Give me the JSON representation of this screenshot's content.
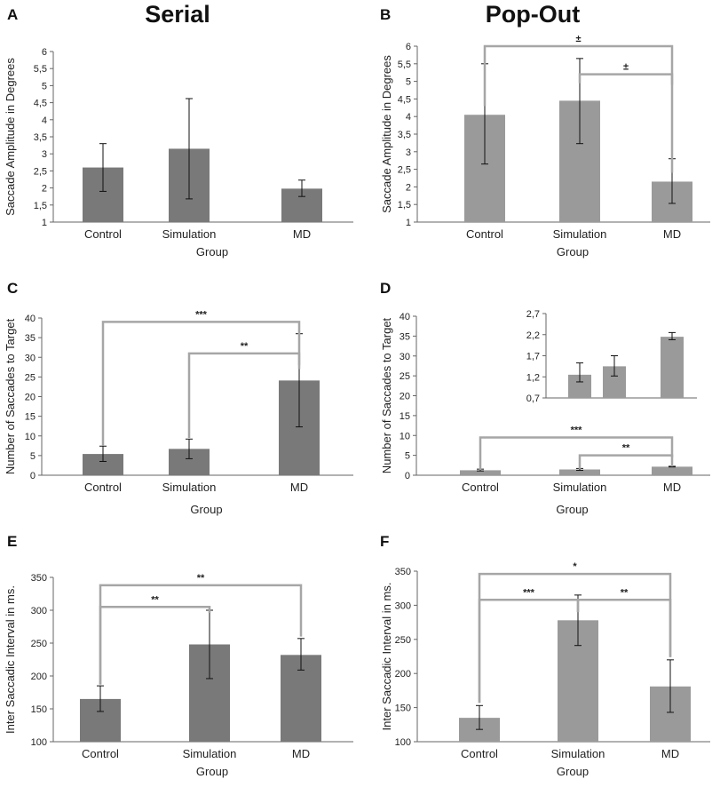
{
  "titles": {
    "left": "Serial",
    "right": "Pop-Out"
  },
  "colors": {
    "dark_bar": "#797979",
    "light_bar": "#9a9a9a",
    "bracket": "#a6a6a6"
  },
  "chart_data": [
    {
      "id": "A",
      "type": "bar",
      "column": "Serial",
      "categories": [
        "Control",
        "Simulation",
        "MD"
      ],
      "values": [
        2.6,
        3.15,
        1.98
      ],
      "err_low": [
        1.9,
        1.68,
        1.75
      ],
      "err_high": [
        3.3,
        4.62,
        2.23
      ],
      "xlabel": "Group",
      "ylabel": "Saccade Amplitude in Degrees",
      "ylim": [
        1,
        6
      ],
      "ticks": [
        "1",
        "1,5",
        "2",
        "2,5",
        "3",
        "3,5",
        "4",
        "4,5",
        "5",
        "5,5",
        "6"
      ],
      "brackets": []
    },
    {
      "id": "B",
      "type": "bar",
      "column": "Pop-Out",
      "categories": [
        "Control",
        "Simulation",
        "MD"
      ],
      "values": [
        4.05,
        4.45,
        2.15
      ],
      "err_low": [
        2.65,
        3.23,
        1.53
      ],
      "err_high": [
        5.5,
        5.65,
        2.8
      ],
      "xlabel": "Group",
      "ylabel": "Saccade Amplitude in Degrees",
      "ylim": [
        1,
        6
      ],
      "ticks": [
        "1",
        "1,5",
        "2",
        "2,5",
        "3",
        "3,5",
        "4",
        "4,5",
        "5",
        "5,5",
        "6"
      ],
      "brackets": [
        {
          "from": "Control",
          "to": "MD",
          "label": "±",
          "level": 6.0,
          "from_base": 4.3,
          "to_base": 2.4
        },
        {
          "from": "Simulation",
          "to": "MD",
          "label": "±",
          "level": 5.2,
          "from_base": 4.95,
          "to_base": 4.9
        }
      ]
    },
    {
      "id": "C",
      "type": "bar",
      "column": "Serial",
      "categories": [
        "Control",
        "Simulation",
        "MD"
      ],
      "values": [
        5.4,
        6.7,
        24.1
      ],
      "err_low": [
        3.5,
        4.2,
        12.3
      ],
      "err_high": [
        7.4,
        9.2,
        36.0
      ],
      "xlabel": "Group",
      "ylabel": "Number of Saccades to Target",
      "ylim": [
        0,
        40
      ],
      "ticks": [
        "0",
        "5",
        "10",
        "15",
        "20",
        "25",
        "30",
        "35",
        "40"
      ],
      "brackets": [
        {
          "from": "Control",
          "to": "MD",
          "label": "***",
          "level": 39.0,
          "from_base": 7.5,
          "to_base": 27.0
        },
        {
          "from": "Simulation",
          "to": "MD",
          "label": "**",
          "level": 31.0,
          "from_base": 9.5,
          "to_base": 28.0
        }
      ]
    },
    {
      "id": "D",
      "type": "bar",
      "column": "Pop-Out",
      "categories": [
        "Control",
        "Simulation",
        "MD"
      ],
      "values": [
        1.25,
        1.45,
        2.15
      ],
      "err_low": [
        1.08,
        1.22,
        2.08
      ],
      "err_high": [
        1.53,
        1.7,
        2.25
      ],
      "xlabel": "Group",
      "ylabel": "Number of Saccades to Target",
      "ylim": [
        0,
        40
      ],
      "ticks": [
        "0",
        "5",
        "10",
        "15",
        "20",
        "25",
        "30",
        "35",
        "40"
      ],
      "brackets": [
        {
          "from": "Control",
          "to": "MD",
          "label": "***",
          "level": 9.5,
          "from_base": 1.3,
          "to_base": 2.2
        },
        {
          "from": "Simulation",
          "to": "MD",
          "label": "**",
          "level": 5.0,
          "from_base": 1.6,
          "to_base": 4.5
        }
      ],
      "inset": {
        "values": [
          1.25,
          1.45,
          2.15
        ],
        "err_low": [
          1.08,
          1.22,
          2.08
        ],
        "err_high": [
          1.53,
          1.7,
          2.25
        ],
        "ylim": [
          0.7,
          2.7
        ],
        "ticks": [
          "0,7",
          "1,2",
          "1,7",
          "2,2",
          "2,7"
        ]
      }
    },
    {
      "id": "E",
      "type": "bar",
      "column": "Serial",
      "categories": [
        "Control",
        "Simulation",
        "MD"
      ],
      "values": [
        165,
        248,
        232
      ],
      "err_low": [
        146,
        196,
        209
      ],
      "err_high": [
        185,
        300,
        257
      ],
      "xlabel": "Group",
      "ylabel": "Inter Saccadic Interval in ms.",
      "ylim": [
        100,
        350
      ],
      "ticks": [
        "100",
        "150",
        "200",
        "250",
        "300",
        "350"
      ],
      "brackets": [
        {
          "from": "Control",
          "to": "MD",
          "label": "**",
          "level": 338,
          "from_base": 187,
          "to_base": 260
        },
        {
          "from": "Control",
          "to": "Simulation",
          "label": "**",
          "level": 305,
          "from_base": 187,
          "to_base": 296
        }
      ]
    },
    {
      "id": "F",
      "type": "bar",
      "column": "Pop-Out",
      "categories": [
        "Control",
        "Simulation",
        "MD"
      ],
      "values": [
        135,
        278,
        181
      ],
      "err_low": [
        118,
        241,
        143
      ],
      "err_high": [
        153,
        315,
        220
      ],
      "xlabel": "Group",
      "ylabel": "Inter Saccadic Interval in ms.",
      "ylim": [
        100,
        350
      ],
      "ticks": [
        "100",
        "150",
        "200",
        "250",
        "300",
        "350"
      ],
      "brackets": [
        {
          "from": "Control",
          "to": "MD",
          "label": "*",
          "level": 346,
          "from_base": 157,
          "to_base": 224
        },
        {
          "from": "Control",
          "to": "Simulation",
          "label": "***",
          "level": 308,
          "from_base": 157,
          "to_base": 290
        },
        {
          "from": "Simulation",
          "to": "MD",
          "label": "**",
          "level": 308,
          "from_base": 290,
          "to_base": 224
        }
      ]
    }
  ]
}
